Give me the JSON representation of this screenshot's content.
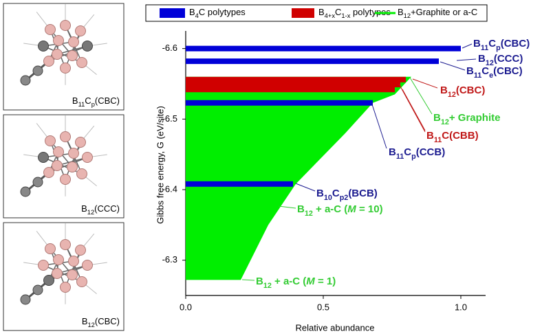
{
  "chart_data": {
    "type": "bar",
    "orientation": "horizontal",
    "x_label": "Relative abundance",
    "y_label": "Gibbs free energy, G (eV/site)",
    "xlim": [
      0,
      1.09
    ],
    "ylim": [
      -6.25,
      -6.625
    ],
    "xticks": [
      {
        "value": 0,
        "label": "0.0"
      },
      0.5,
      {
        "value": 1,
        "label": "1.0"
      }
    ],
    "yticks": [
      -6.6,
      -6.5,
      -6.4,
      -6.3
    ],
    "series": [
      {
        "name": [
          {
            "text": "B"
          },
          {
            "text": "4",
            "sub": true
          },
          {
            "text": "C polytypes"
          }
        ],
        "color": "#0000d8",
        "y": [
          -6.6,
          -6.582,
          -6.523,
          -6.408
        ],
        "values": [
          1.0,
          0.92,
          0.68,
          0.39
        ]
      },
      {
        "name": [
          {
            "text": "B"
          },
          {
            "text": "4+x",
            "sub": true
          },
          {
            "text": "C"
          },
          {
            "text": "1-x",
            "sub": true
          },
          {
            "text": " polytypes"
          }
        ],
        "color": "#d00000",
        "y": [
          -6.556,
          -6.549,
          -6.542
        ],
        "values": [
          0.8,
          0.78,
          0.76
        ]
      },
      {
        "type": "area",
        "name": [
          {
            "text": "B"
          },
          {
            "text": "12",
            "sub": true
          },
          {
            "text": "+Graphite or a-C"
          }
        ],
        "color": "#00ee00",
        "x": [
          0.82,
          0.76,
          0.68,
          0.58,
          0.48,
          0.4,
          0.3,
          0.2
        ],
        "y": [
          -6.56,
          -6.535,
          -6.523,
          -6.48,
          -6.44,
          -6.408,
          -6.35,
          -6.272
        ]
      }
    ],
    "annotations": [
      {
        "color": "#1c1c90",
        "parts": [
          {
            "text": "B"
          },
          {
            "text": "11",
            "sub": true
          },
          {
            "text": "C"
          },
          {
            "text": "p",
            "sub": true
          },
          {
            "text": "(CBC)"
          }
        ]
      },
      {
        "color": "#1c1c90",
        "parts": [
          {
            "text": "B"
          },
          {
            "text": "12",
            "sub": true
          },
          {
            "text": "(CCC)"
          }
        ]
      },
      {
        "color": "#1c1c90",
        "parts": [
          {
            "text": "B"
          },
          {
            "text": "11",
            "sub": true
          },
          {
            "text": "C"
          },
          {
            "text": "e",
            "sub": true
          },
          {
            "text": "(CBC)"
          }
        ]
      },
      {
        "color": "#c01818",
        "parts": [
          {
            "text": "B"
          },
          {
            "text": "12",
            "sub": true
          },
          {
            "text": "(CBC)"
          }
        ]
      },
      {
        "color": "#33cc33",
        "parts": [
          {
            "text": "B"
          },
          {
            "text": "12",
            "sub": true
          },
          {
            "text": "+ Graphite"
          }
        ]
      },
      {
        "color": "#c01818",
        "parts": [
          {
            "text": "B"
          },
          {
            "text": "11",
            "sub": true
          },
          {
            "text": "C(CBB)"
          }
        ]
      },
      {
        "color": "#1c1c90",
        "parts": [
          {
            "text": "B"
          },
          {
            "text": "11",
            "sub": true
          },
          {
            "text": "C"
          },
          {
            "text": "p",
            "sub": true
          },
          {
            "text": "(CCB)"
          }
        ]
      },
      {
        "color": "#1c1c90",
        "parts": [
          {
            "text": "B"
          },
          {
            "text": "10",
            "sub": true
          },
          {
            "text": "C"
          },
          {
            "text": "p2",
            "sub": true
          },
          {
            "text": "(BCB)"
          }
        ]
      },
      {
        "color": "#33cc33",
        "parts": [
          {
            "text": "B"
          },
          {
            "text": "12",
            "sub": true
          },
          {
            "text": " + a-C ("
          },
          {
            "text": "M",
            "italic": true
          },
          {
            "text": " = 10)"
          }
        ]
      },
      {
        "color": "#33cc33",
        "parts": [
          {
            "text": "B"
          },
          {
            "text": "12",
            "sub": true
          },
          {
            "text": " + a-C ("
          },
          {
            "text": "M",
            "italic": true
          },
          {
            "text": " = 1)"
          }
        ]
      }
    ]
  },
  "panels": [
    {
      "label": [
        {
          "text": "B"
        },
        {
          "text": "11",
          "sub": true
        },
        {
          "text": "C"
        },
        {
          "text": "p",
          "sub": true
        },
        {
          "text": "(CBC)"
        }
      ]
    },
    {
      "label": [
        {
          "text": "B"
        },
        {
          "text": "12",
          "sub": true
        },
        {
          "text": "(CCC)"
        }
      ]
    },
    {
      "label": [
        {
          "text": "B"
        },
        {
          "text": "12",
          "sub": true
        },
        {
          "text": "(CBC)"
        }
      ]
    }
  ]
}
